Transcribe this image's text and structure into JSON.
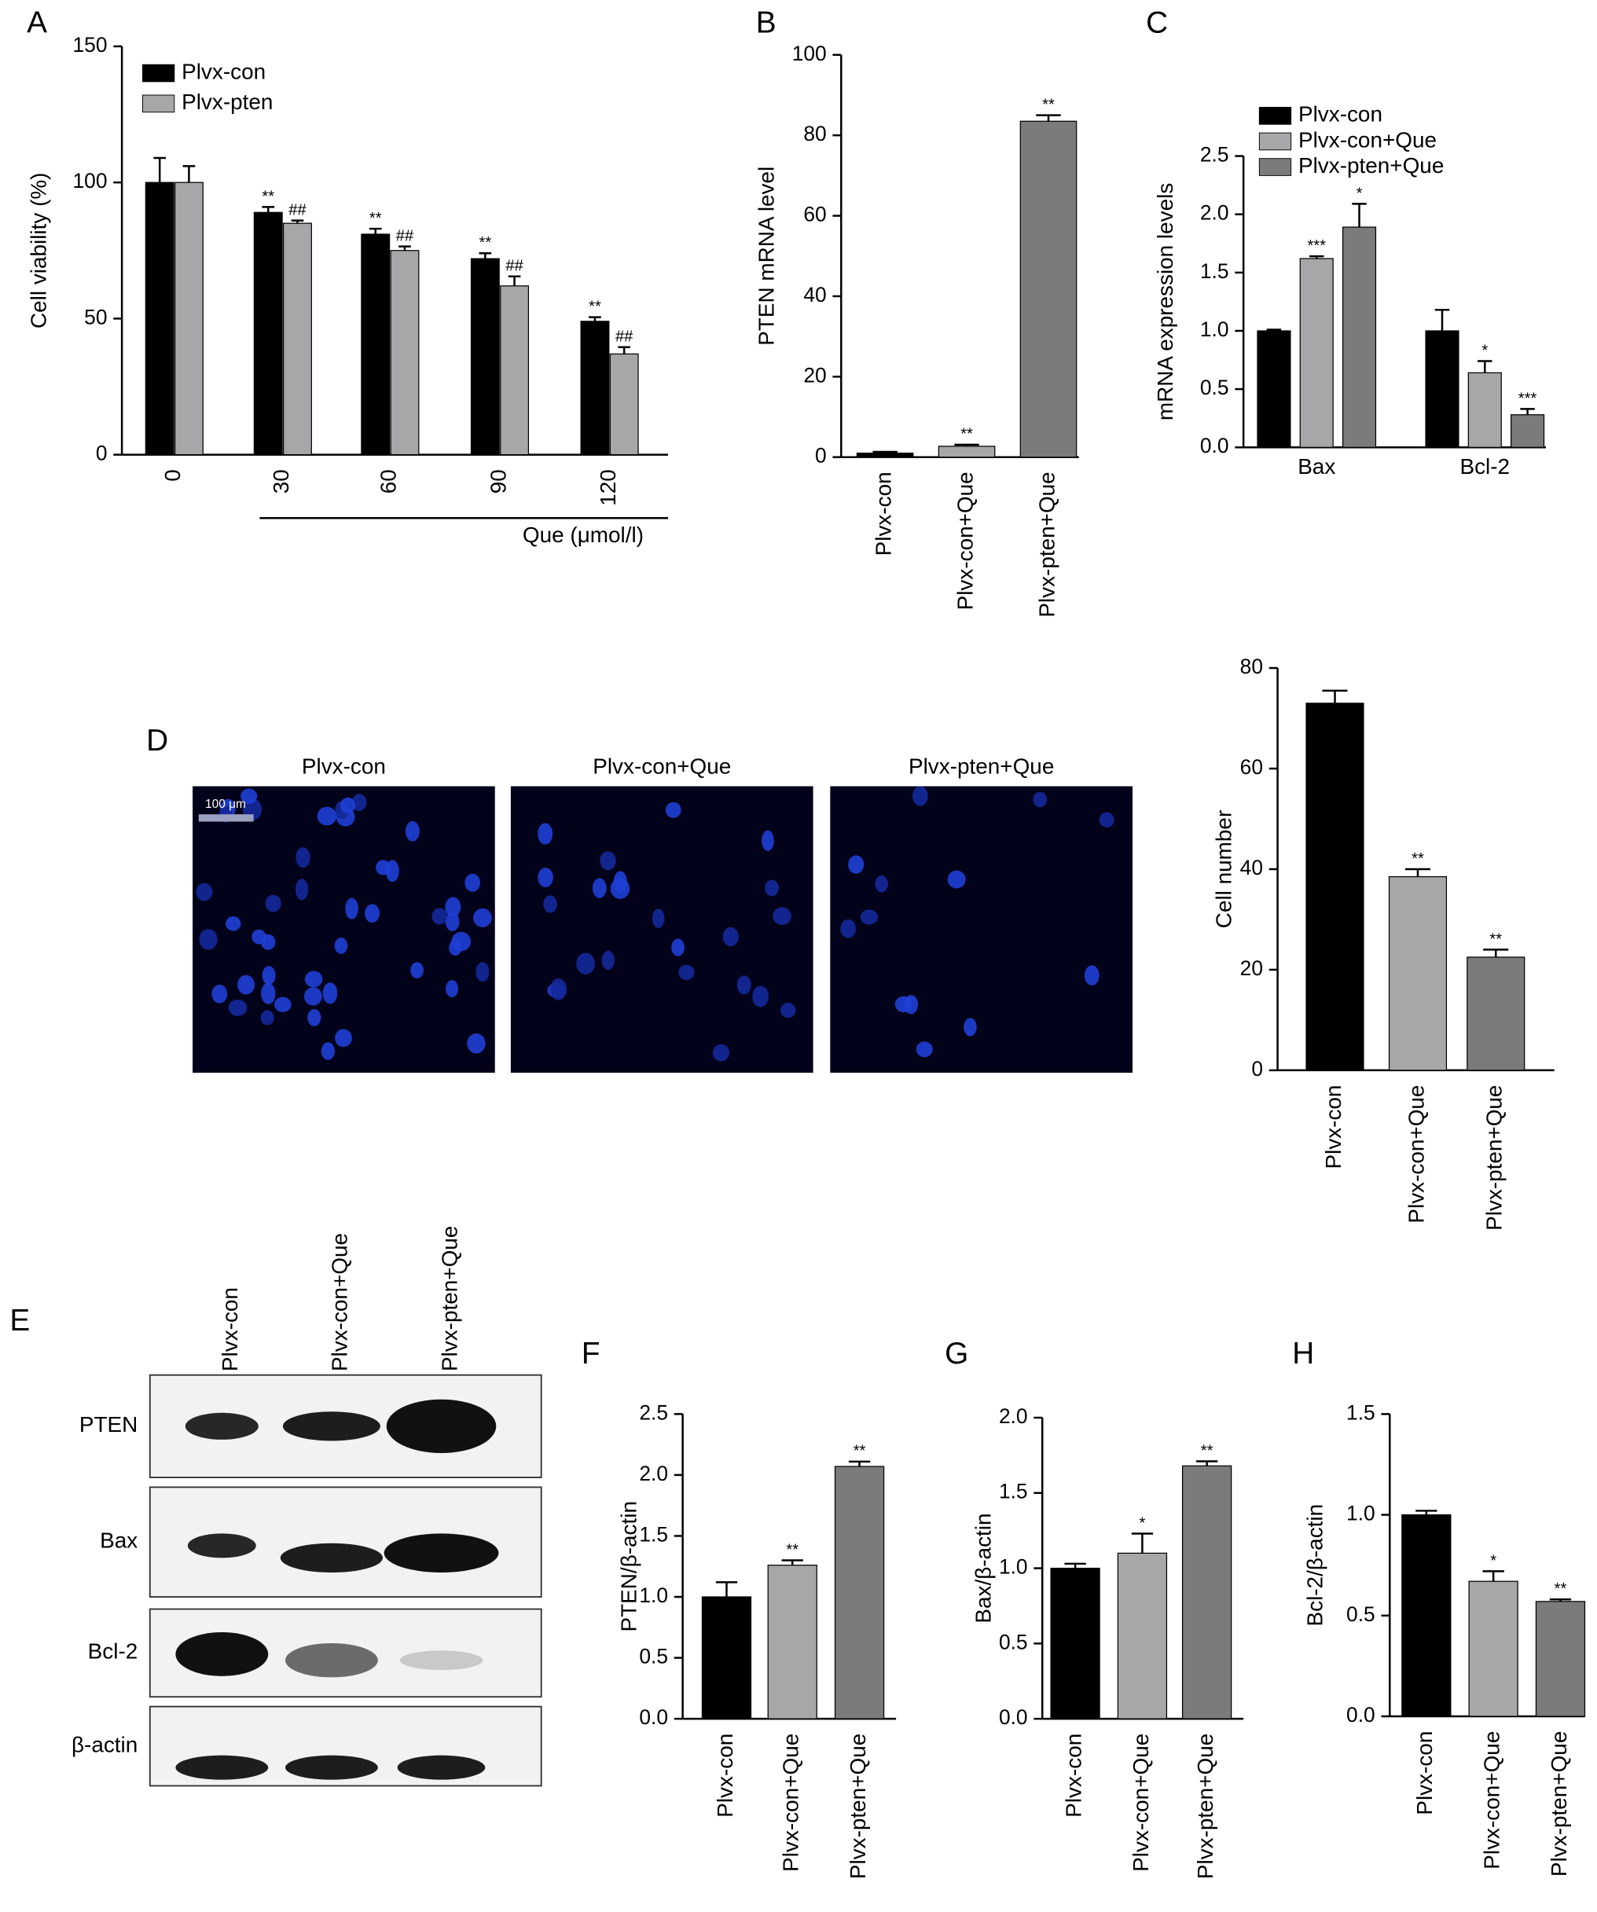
{
  "chart_data": [
    {
      "type": "bar",
      "panel": "A",
      "ylabel": "Cell viability (%)",
      "xlabel": "Que (μmol/l)",
      "categories": [
        "0",
        "30",
        "60",
        "90",
        "120"
      ],
      "series": [
        {
          "name": "Plvx-con",
          "color": "#000000",
          "values": [
            100,
            89,
            81,
            72,
            49
          ],
          "errors": [
            9,
            2,
            2,
            2,
            1.5
          ],
          "annotations": [
            null,
            "**",
            "**",
            "**",
            "**"
          ]
        },
        {
          "name": "Plvx-pten",
          "color": "#a7a7aa",
          "values": [
            100,
            85,
            75,
            62,
            37
          ],
          "errors": [
            6,
            1,
            1.5,
            3.5,
            2.5
          ],
          "annotations": [
            null,
            "##",
            "##",
            "##",
            "##"
          ]
        }
      ],
      "ylim": [
        0,
        150
      ],
      "yticks": [
        0,
        50,
        100,
        150
      ],
      "legend": "upper left"
    },
    {
      "type": "bar",
      "panel": "B",
      "ylabel": "PTEN mRNA level",
      "categories": [
        "Plvx-con",
        "Plvx-con+Que",
        "Plvx-pten+Que"
      ],
      "values": [
        1,
        2.7,
        83.5
      ],
      "errors": [
        0.3,
        0.4,
        1.5
      ],
      "annotations": [
        null,
        "**",
        "**"
      ],
      "colors": [
        "#000000",
        "#a7a7aa",
        "#7b7b7b"
      ],
      "ylim": [
        0,
        100
      ],
      "yticks": [
        0,
        20,
        40,
        60,
        80,
        100
      ]
    },
    {
      "type": "bar",
      "panel": "C",
      "ylabel": "mRNA expression levels",
      "categories": [
        "Bax",
        "Bcl-2"
      ],
      "series": [
        {
          "name": "Plvx-con",
          "color": "#000000",
          "values": [
            1.0,
            1.0
          ],
          "errors": [
            0.01,
            0.18
          ],
          "annotations": [
            null,
            null
          ]
        },
        {
          "name": "Plvx-con+Que",
          "color": "#a7a7aa",
          "values": [
            1.62,
            0.64
          ],
          "errors": [
            0.02,
            0.1
          ],
          "annotations": [
            "***",
            "*"
          ]
        },
        {
          "name": "Plvx-pten+Que",
          "color": "#7b7b7b",
          "values": [
            1.89,
            0.28
          ],
          "errors": [
            0.2,
            0.05
          ],
          "annotations": [
            "*",
            "***"
          ]
        }
      ],
      "ylim": [
        0,
        2.5
      ],
      "yticks": [
        {
          "value": 0,
          "label": "0.0"
        },
        0.5,
        {
          "value": 1,
          "label": "1.0"
        },
        1.5,
        {
          "value": 2,
          "label": "2.0"
        },
        2.5
      ],
      "legend": "upper left"
    },
    {
      "type": "bar",
      "ylabel": "Cell number",
      "categories": [
        "Plvx-con",
        "Plvx-con+Que",
        "Plvx-pten+Que"
      ],
      "values": [
        73,
        38.5,
        22.5
      ],
      "errors": [
        2.5,
        1.5,
        1.5
      ],
      "annotations": [
        null,
        "**",
        "**"
      ],
      "colors": [
        "#000000",
        "#a7a7aa",
        "#7b7b7b"
      ],
      "ylim": [
        0,
        80
      ],
      "yticks": [
        0,
        20,
        40,
        60,
        80
      ]
    },
    {
      "type": "bar",
      "panel": "F",
      "ylabel": "PTEN/β-actin",
      "categories": [
        "Plvx-con",
        "Plvx-con+Que",
        "Plvx-pten+Que"
      ],
      "values": [
        1.0,
        1.26,
        2.07
      ],
      "errors": [
        0.12,
        0.04,
        0.04
      ],
      "annotations": [
        null,
        "**",
        "**"
      ],
      "colors": [
        "#000000",
        "#a7a7aa",
        "#7b7b7b"
      ],
      "ylim": [
        0,
        2.5
      ],
      "yticks": [
        {
          "value": 0,
          "label": "0.0"
        },
        0.5,
        {
          "value": 1,
          "label": "1.0"
        },
        1.5,
        {
          "value": 2,
          "label": "2.0"
        },
        2.5
      ]
    },
    {
      "type": "bar",
      "panel": "G",
      "ylabel": "Bax/β-actin",
      "categories": [
        "Plvx-con",
        "Plvx-con+Que",
        "Plvx-pten+Que"
      ],
      "values": [
        1.0,
        1.1,
        1.68
      ],
      "errors": [
        0.03,
        0.13,
        0.03
      ],
      "annotations": [
        null,
        "*",
        "**"
      ],
      "colors": [
        "#000000",
        "#a7a7aa",
        "#7b7b7b"
      ],
      "ylim": [
        0,
        2
      ],
      "yticks": [
        {
          "value": 0,
          "label": "0.0"
        },
        0.5,
        {
          "value": 1,
          "label": "1.0"
        },
        1.5,
        {
          "value": 2,
          "label": "2.0"
        }
      ]
    },
    {
      "type": "bar",
      "panel": "H",
      "ylabel": "Bcl-2/β-actin",
      "categories": [
        "Plvx-con",
        "Plvx-con+Que",
        "Plvx-pten+Que"
      ],
      "values": [
        1.0,
        0.67,
        0.57
      ],
      "errors": [
        0.02,
        0.05,
        0.01
      ],
      "annotations": [
        null,
        "*",
        "**"
      ],
      "colors": [
        "#000000",
        "#a7a7aa",
        "#7b7b7b"
      ],
      "ylim": [
        0,
        1.5
      ],
      "yticks": [
        {
          "value": 0,
          "label": "0.0"
        },
        0.5,
        {
          "value": 1,
          "label": "1.0"
        },
        1.5
      ]
    }
  ],
  "micrographs": {
    "panel": "D",
    "titles": [
      "Plvx-con",
      "Plvx-con+Que",
      "Plvx-pten+Que"
    ],
    "scale_bar": "100 μm"
  },
  "western_blot": {
    "panel": "E",
    "lanes": [
      "Plvx-con",
      "Plvx-con+Que",
      "Plvx-pten+Que"
    ],
    "rows": [
      "PTEN",
      "Bax",
      "Bcl-2",
      "β-actin"
    ]
  }
}
